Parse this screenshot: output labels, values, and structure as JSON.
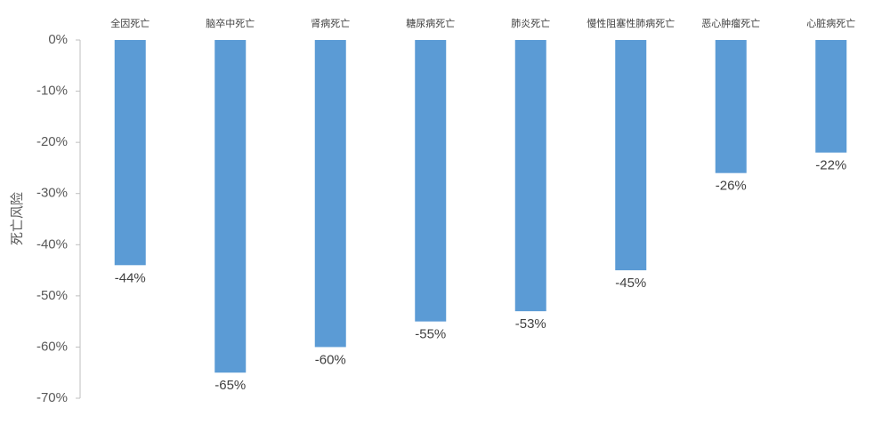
{
  "chart_data": {
    "type": "bar",
    "y_label": "死亡风险",
    "categories": [
      "全因死亡",
      "脑卒中死亡",
      "肾病死亡",
      "糖尿病死亡",
      "肺炎死亡",
      "慢性阻塞性肺病死亡",
      "恶心肿瘤死亡",
      "心脏病死亡"
    ],
    "values": [
      -44,
      -65,
      -60,
      -55,
      -53,
      -45,
      -26,
      -22
    ],
    "value_labels": [
      "-44%",
      "-65%",
      "-60%",
      "-55%",
      "-53%",
      "-45%",
      "-26%",
      "-22%"
    ],
    "color": "#5b9bd5",
    "ylim": [
      -70,
      0
    ],
    "yticks": [
      {
        "value": 0,
        "label": "0%"
      },
      {
        "value": -10,
        "label": "-10%"
      },
      {
        "value": -20,
        "label": "-20%"
      },
      {
        "value": -30,
        "label": "-30%"
      },
      {
        "value": -40,
        "label": "-40%"
      },
      {
        "value": -50,
        "label": "-50%"
      },
      {
        "value": -60,
        "label": "-60%"
      },
      {
        "value": -70,
        "label": "-70%"
      }
    ],
    "grid": false
  }
}
